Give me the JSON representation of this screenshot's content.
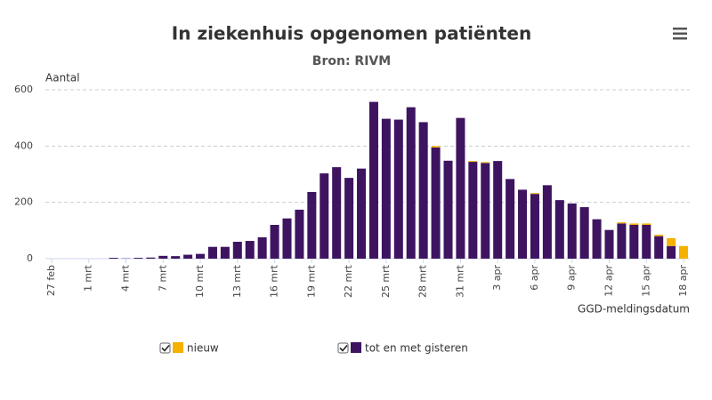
{
  "chart_data": {
    "type": "stacked-bar",
    "title": "In ziekenhuis opgenomen patiënten",
    "subtitle": "Bron: RIVM",
    "y_label": "Aantal",
    "x_label": "GGD-meldingsdatum",
    "categories": [
      "27 feb",
      null,
      null,
      "1 mrt",
      null,
      null,
      "4 mrt",
      null,
      null,
      "7 mrt",
      null,
      null,
      "10 mrt",
      null,
      null,
      "13 mrt",
      null,
      null,
      "16 mrt",
      null,
      null,
      "19 mrt",
      null,
      null,
      "22 mrt",
      null,
      null,
      "25 mrt",
      null,
      null,
      "28 mrt",
      null,
      null,
      "31 mrt",
      null,
      null,
      "3 apr",
      null,
      null,
      "6 apr",
      null,
      null,
      "9 apr",
      null,
      null,
      "12 apr",
      null,
      null,
      "15 apr",
      null,
      null,
      "18 apr"
    ],
    "series": [
      {
        "name": "nieuw",
        "color": "#f5b100",
        "values": [
          0,
          0,
          0,
          0,
          0,
          0,
          0,
          0,
          0,
          0,
          0,
          0,
          0,
          0,
          0,
          0,
          0,
          0,
          0,
          0,
          0,
          0,
          0,
          0,
          0,
          0,
          0,
          0,
          0,
          0,
          0,
          5,
          0,
          0,
          3,
          3,
          0,
          0,
          0,
          3,
          0,
          0,
          0,
          0,
          0,
          0,
          4,
          5,
          5,
          5,
          28,
          45
        ]
      },
      {
        "name": "tot en met gisteren",
        "color": "#3e1461",
        "values": [
          0,
          0,
          0,
          0,
          0,
          3,
          1,
          3,
          4,
          10,
          9,
          14,
          17,
          42,
          42,
          60,
          63,
          76,
          120,
          143,
          174,
          237,
          303,
          325,
          287,
          320,
          557,
          497,
          494,
          538,
          485,
          395,
          348,
          500,
          344,
          340,
          347,
          283,
          245,
          230,
          261,
          208,
          196,
          183,
          140,
          102,
          125,
          120,
          120,
          80,
          45,
          0
        ]
      }
    ],
    "ylim": [
      0,
      600
    ],
    "yticks": [
      0,
      200,
      400,
      600
    ],
    "grid": true
  }
}
